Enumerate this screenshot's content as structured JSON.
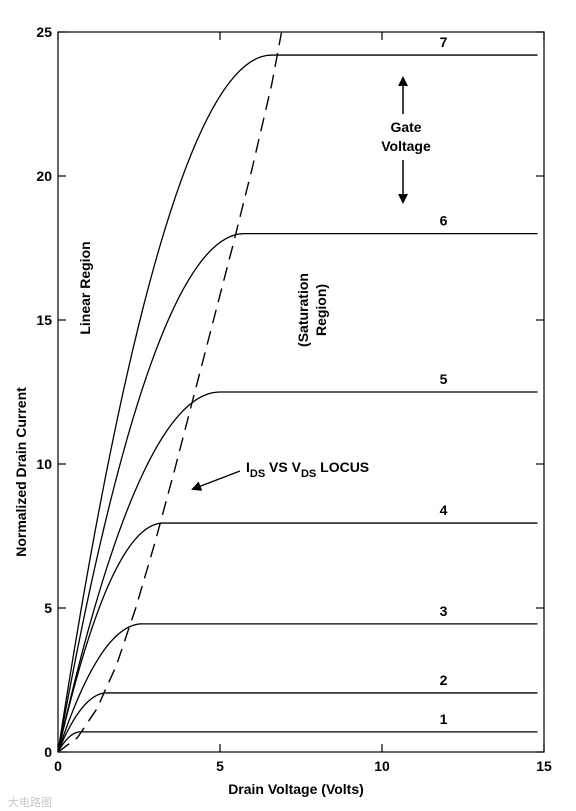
{
  "chart_data": {
    "type": "line",
    "xlabel": "Drain Voltage (Volts)",
    "ylabel": "Normalized Drain Current",
    "xlim": [
      0,
      15
    ],
    "ylim": [
      0,
      25
    ],
    "xticks": [
      0,
      5,
      10,
      15
    ],
    "yticks": [
      0,
      5,
      10,
      15,
      20,
      25
    ],
    "grid": false,
    "series": [
      {
        "name": "1",
        "saturation_current": 0.7,
        "saturation_voltage": 0.7,
        "x_end": 14.8
      },
      {
        "name": "2",
        "saturation_current": 2.05,
        "saturation_voltage": 1.5,
        "x_end": 14.8
      },
      {
        "name": "3",
        "saturation_current": 4.45,
        "saturation_voltage": 2.6,
        "x_end": 14.8
      },
      {
        "name": "4",
        "saturation_current": 7.95,
        "saturation_voltage": 3.25,
        "x_end": 14.8
      },
      {
        "name": "5",
        "saturation_current": 12.5,
        "saturation_voltage": 5.0,
        "x_end": 14.8
      },
      {
        "name": "6",
        "saturation_current": 18.0,
        "saturation_voltage": 5.75,
        "x_end": 14.8
      },
      {
        "name": "7",
        "saturation_current": 24.2,
        "saturation_voltage": 6.6,
        "x_end": 14.8
      }
    ],
    "locus": {
      "style": "dashed",
      "x": [
        0,
        0.6,
        1.2,
        1.8,
        2.4,
        3.0,
        3.6,
        4.2,
        4.8,
        5.4,
        6.0,
        6.6,
        6.9
      ],
      "y": [
        0,
        0.5,
        1.5,
        3.0,
        5.0,
        7.3,
        9.8,
        12.4,
        15.0,
        17.6,
        20.3,
        23.2,
        25.0
      ]
    },
    "annotations": {
      "linear_region": "Linear Region",
      "saturation_region": [
        "(Saturation",
        "Region)"
      ],
      "gate_voltage": [
        "Gate",
        "Voltage"
      ],
      "locus_label": {
        "I": "I",
        "DS1": "DS",
        "VS": " VS V",
        "DS2": "DS",
        "LOCUS": " LOCUS"
      }
    }
  },
  "watermark": "大电路图"
}
